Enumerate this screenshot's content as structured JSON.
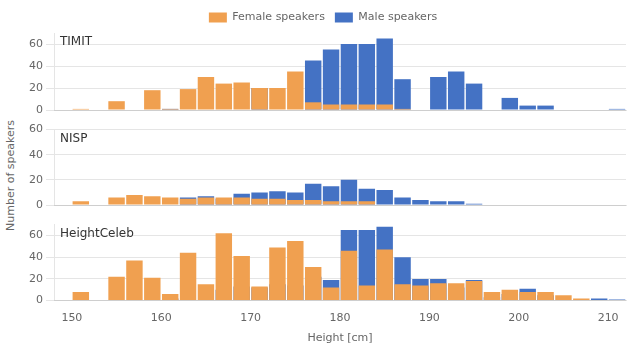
{
  "chart_data": [
    {
      "type": "bar",
      "title": "TIMIT",
      "x": [
        151,
        153,
        155,
        157,
        159,
        161,
        163,
        165,
        167,
        169,
        171,
        173,
        175,
        177,
        179,
        181,
        183,
        185,
        187,
        189,
        191,
        193,
        195,
        197,
        199,
        201,
        203,
        205,
        207,
        209,
        211
      ],
      "series": [
        {
          "name": "Male speakers",
          "color": "#4472c4",
          "values": [
            0,
            0,
            0,
            0,
            0,
            1,
            0,
            0,
            0,
            0,
            20,
            0,
            0,
            45,
            55,
            60,
            60,
            65,
            28,
            0,
            30,
            35,
            24,
            0,
            11,
            4,
            4,
            0,
            0,
            0,
            1
          ]
        },
        {
          "name": "Female speakers",
          "color": "#f0a050",
          "values": [
            1,
            0,
            8,
            0,
            18,
            1,
            19,
            30,
            24,
            25,
            20,
            20,
            35,
            7,
            5,
            5,
            5,
            5,
            1,
            0,
            0,
            0,
            0,
            0,
            0,
            0,
            0,
            0,
            0,
            0,
            0
          ]
        }
      ],
      "xlim": [
        148,
        212
      ],
      "xticks": [
        150,
        160,
        170,
        180,
        190,
        200,
        210
      ],
      "ylim": [
        0,
        70
      ],
      "yticks": [
        0,
        20,
        40,
        60
      ],
      "grid": true,
      "legend": "upper center",
      "tick_labels": "y"
    },
    {
      "type": "bar",
      "title": "NISP",
      "ylabel": "Number of speakers",
      "x": [
        151,
        153,
        155,
        157,
        159,
        161,
        163,
        165,
        167,
        169,
        171,
        173,
        175,
        177,
        179,
        181,
        183,
        185,
        187,
        189,
        191,
        193,
        195,
        197,
        199,
        201,
        203,
        205,
        207,
        209,
        211
      ],
      "series": [
        {
          "name": "Male speakers",
          "color": "#4472c4",
          "values": [
            0,
            0,
            0,
            0,
            0,
            0,
            6,
            7,
            5,
            9,
            10,
            11,
            10,
            17,
            15,
            20,
            13,
            12,
            6,
            4,
            3,
            3,
            1,
            0,
            0,
            0,
            0,
            0,
            0,
            0,
            0
          ]
        },
        {
          "name": "Female speakers",
          "color": "#f0a050",
          "values": [
            3,
            0,
            6,
            8,
            7,
            6,
            5,
            6,
            6,
            6,
            5,
            5,
            4,
            4,
            3,
            3,
            3,
            0,
            0,
            0,
            0,
            0,
            0,
            0,
            0,
            0,
            0,
            0,
            0,
            0,
            0
          ]
        }
      ],
      "xlim": [
        148,
        212
      ],
      "xticks": [
        150,
        160,
        170,
        180,
        190,
        200,
        210
      ],
      "ylim": [
        0,
        60
      ],
      "yticks": [
        0,
        20,
        40,
        60
      ],
      "grid": true,
      "tick_labels": "y"
    },
    {
      "type": "bar",
      "title": "HeightCeleb",
      "xlabel": "Height [cm]",
      "x": [
        151,
        153,
        155,
        157,
        159,
        161,
        163,
        165,
        167,
        169,
        171,
        173,
        175,
        177,
        179,
        181,
        183,
        185,
        187,
        189,
        191,
        193,
        195,
        197,
        199,
        201,
        203,
        205,
        207,
        209,
        211
      ],
      "series": [
        {
          "name": "Male speakers",
          "color": "#4472c4",
          "values": [
            0,
            0,
            0,
            0,
            0,
            2,
            0,
            0,
            10,
            13,
            12,
            15,
            14,
            22,
            19,
            65,
            65,
            68,
            40,
            20,
            20,
            12,
            19,
            3,
            6,
            11,
            5,
            0,
            0,
            2,
            1
          ]
        },
        {
          "name": "Female speakers",
          "color": "#f0a050",
          "values": [
            8,
            0,
            22,
            37,
            21,
            6,
            44,
            15,
            62,
            41,
            13,
            49,
            55,
            31,
            12,
            46,
            14,
            47,
            15,
            14,
            16,
            16,
            18,
            8,
            10,
            8,
            8,
            5,
            2,
            0,
            0
          ]
        }
      ],
      "xlim": [
        148,
        212
      ],
      "xticks": [
        150,
        160,
        170,
        180,
        190,
        200,
        210
      ],
      "ylim": [
        0,
        70
      ],
      "yticks": [
        0,
        20,
        40,
        60
      ],
      "grid": true
    }
  ]
}
